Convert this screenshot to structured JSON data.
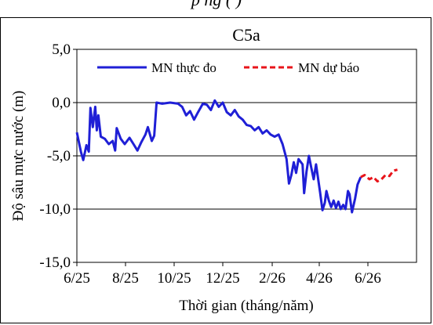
{
  "caption": "p   ng       (    )",
  "chart_data": {
    "type": "line",
    "title": "C5a",
    "xlabel": "Thời gian  (tháng/năm)",
    "ylabel": "Độ sâu mực nước (m)",
    "ylim": [
      -15,
      5
    ],
    "yticks": [
      5,
      0,
      -5,
      -10,
      -15
    ],
    "ytick_labels": [
      "5,0",
      "0,0",
      "-5,0",
      "-10,0",
      "-15,0"
    ],
    "xlim": [
      "2025-06",
      "2026-08"
    ],
    "xticks": [
      "2025-06",
      "2025-08",
      "2025-10",
      "2025-12",
      "2026-02",
      "2026-04",
      "2026-06"
    ],
    "xtick_labels": [
      "6/25",
      "8/25",
      "10/25",
      "12/25",
      "2/26",
      "4/26",
      "6/26"
    ],
    "grid": "horizontal",
    "legend_position": "top",
    "series": [
      {
        "name": "MN thực đo",
        "color": "#1f1fd6",
        "style": "solid",
        "points": [
          [
            "2025-06-01",
            -2.8
          ],
          [
            "2025-06-06",
            -4.6
          ],
          [
            "2025-06-09",
            -5.4
          ],
          [
            "2025-06-13",
            -4.0
          ],
          [
            "2025-06-16",
            -4.6
          ],
          [
            "2025-06-18",
            -0.5
          ],
          [
            "2025-06-21",
            -2.3
          ],
          [
            "2025-06-24",
            -0.4
          ],
          [
            "2025-06-26",
            -2.6
          ],
          [
            "2025-06-28",
            -1.2
          ],
          [
            "2025-07-01",
            -3.2
          ],
          [
            "2025-07-06",
            -3.4
          ],
          [
            "2025-07-11",
            -3.9
          ],
          [
            "2025-07-16",
            -3.6
          ],
          [
            "2025-07-19",
            -4.5
          ],
          [
            "2025-07-21",
            -2.4
          ],
          [
            "2025-07-26",
            -3.4
          ],
          [
            "2025-07-31",
            -3.9
          ],
          [
            "2025-08-06",
            -3.3
          ],
          [
            "2025-08-11",
            -3.9
          ],
          [
            "2025-08-16",
            -4.5
          ],
          [
            "2025-08-21",
            -3.7
          ],
          [
            "2025-08-26",
            -3.0
          ],
          [
            "2025-08-29",
            -2.3
          ],
          [
            "2025-09-03",
            -3.6
          ],
          [
            "2025-09-06",
            -3.1
          ],
          [
            "2025-09-09",
            0.0
          ],
          [
            "2025-09-16",
            -0.1
          ],
          [
            "2025-09-26",
            0.0
          ],
          [
            "2025-10-06",
            -0.1
          ],
          [
            "2025-10-11",
            -0.4
          ],
          [
            "2025-10-16",
            -1.2
          ],
          [
            "2025-10-21",
            -0.8
          ],
          [
            "2025-10-26",
            -1.6
          ],
          [
            "2025-10-31",
            -0.9
          ],
          [
            "2025-11-06",
            -0.1
          ],
          [
            "2025-11-11",
            -0.2
          ],
          [
            "2025-11-16",
            -0.7
          ],
          [
            "2025-11-21",
            0.2
          ],
          [
            "2025-11-26",
            -0.4
          ],
          [
            "2025-12-01",
            0.0
          ],
          [
            "2025-12-06",
            -0.9
          ],
          [
            "2025-12-11",
            -1.2
          ],
          [
            "2025-12-16",
            -0.7
          ],
          [
            "2025-12-21",
            -1.3
          ],
          [
            "2025-12-26",
            -1.6
          ],
          [
            "2025-12-31",
            -2.1
          ],
          [
            "2026-01-05",
            -2.2
          ],
          [
            "2026-01-10",
            -2.6
          ],
          [
            "2026-01-15",
            -2.3
          ],
          [
            "2026-01-20",
            -2.9
          ],
          [
            "2026-01-25",
            -2.6
          ],
          [
            "2026-01-30",
            -3.0
          ],
          [
            "2026-02-04",
            -3.2
          ],
          [
            "2026-02-09",
            -3.0
          ],
          [
            "2026-02-14",
            -3.9
          ],
          [
            "2026-02-19",
            -5.3
          ],
          [
            "2026-02-22",
            -7.6
          ],
          [
            "2026-02-25",
            -6.8
          ],
          [
            "2026-02-28",
            -5.6
          ],
          [
            "2026-03-03",
            -6.6
          ],
          [
            "2026-03-06",
            -5.3
          ],
          [
            "2026-03-11",
            -5.8
          ],
          [
            "2026-03-13",
            -8.5
          ],
          [
            "2026-03-16",
            -6.5
          ],
          [
            "2026-03-19",
            -5.0
          ],
          [
            "2026-03-22",
            -6.1
          ],
          [
            "2026-03-25",
            -7.2
          ],
          [
            "2026-03-28",
            -5.8
          ],
          [
            "2026-04-02",
            -8.4
          ],
          [
            "2026-04-05",
            -10.1
          ],
          [
            "2026-04-08",
            -9.4
          ],
          [
            "2026-04-10",
            -8.3
          ],
          [
            "2026-04-13",
            -9.2
          ],
          [
            "2026-04-16",
            -9.8
          ],
          [
            "2026-04-19",
            -9.2
          ],
          [
            "2026-04-22",
            -9.9
          ],
          [
            "2026-04-25",
            -9.3
          ],
          [
            "2026-04-28",
            -10.0
          ],
          [
            "2026-05-01",
            -9.6
          ],
          [
            "2026-05-04",
            -10.0
          ],
          [
            "2026-05-07",
            -8.3
          ],
          [
            "2026-05-09",
            -8.6
          ],
          [
            "2026-05-12",
            -10.3
          ],
          [
            "2026-05-16",
            -9.0
          ],
          [
            "2026-05-19",
            -7.7
          ],
          [
            "2026-05-23",
            -7.0
          ]
        ]
      },
      {
        "name": "MN dự báo",
        "color": "#e8141a",
        "style": "dashed",
        "points": [
          [
            "2026-05-23",
            -7.0
          ],
          [
            "2026-05-28",
            -6.8
          ],
          [
            "2026-06-03",
            -7.2
          ],
          [
            "2026-06-08",
            -7.0
          ],
          [
            "2026-06-13",
            -7.4
          ],
          [
            "2026-06-18",
            -7.2
          ],
          [
            "2026-06-23",
            -6.8
          ],
          [
            "2026-06-28",
            -6.9
          ],
          [
            "2026-07-03",
            -6.4
          ],
          [
            "2026-07-08",
            -6.3
          ]
        ]
      }
    ]
  }
}
